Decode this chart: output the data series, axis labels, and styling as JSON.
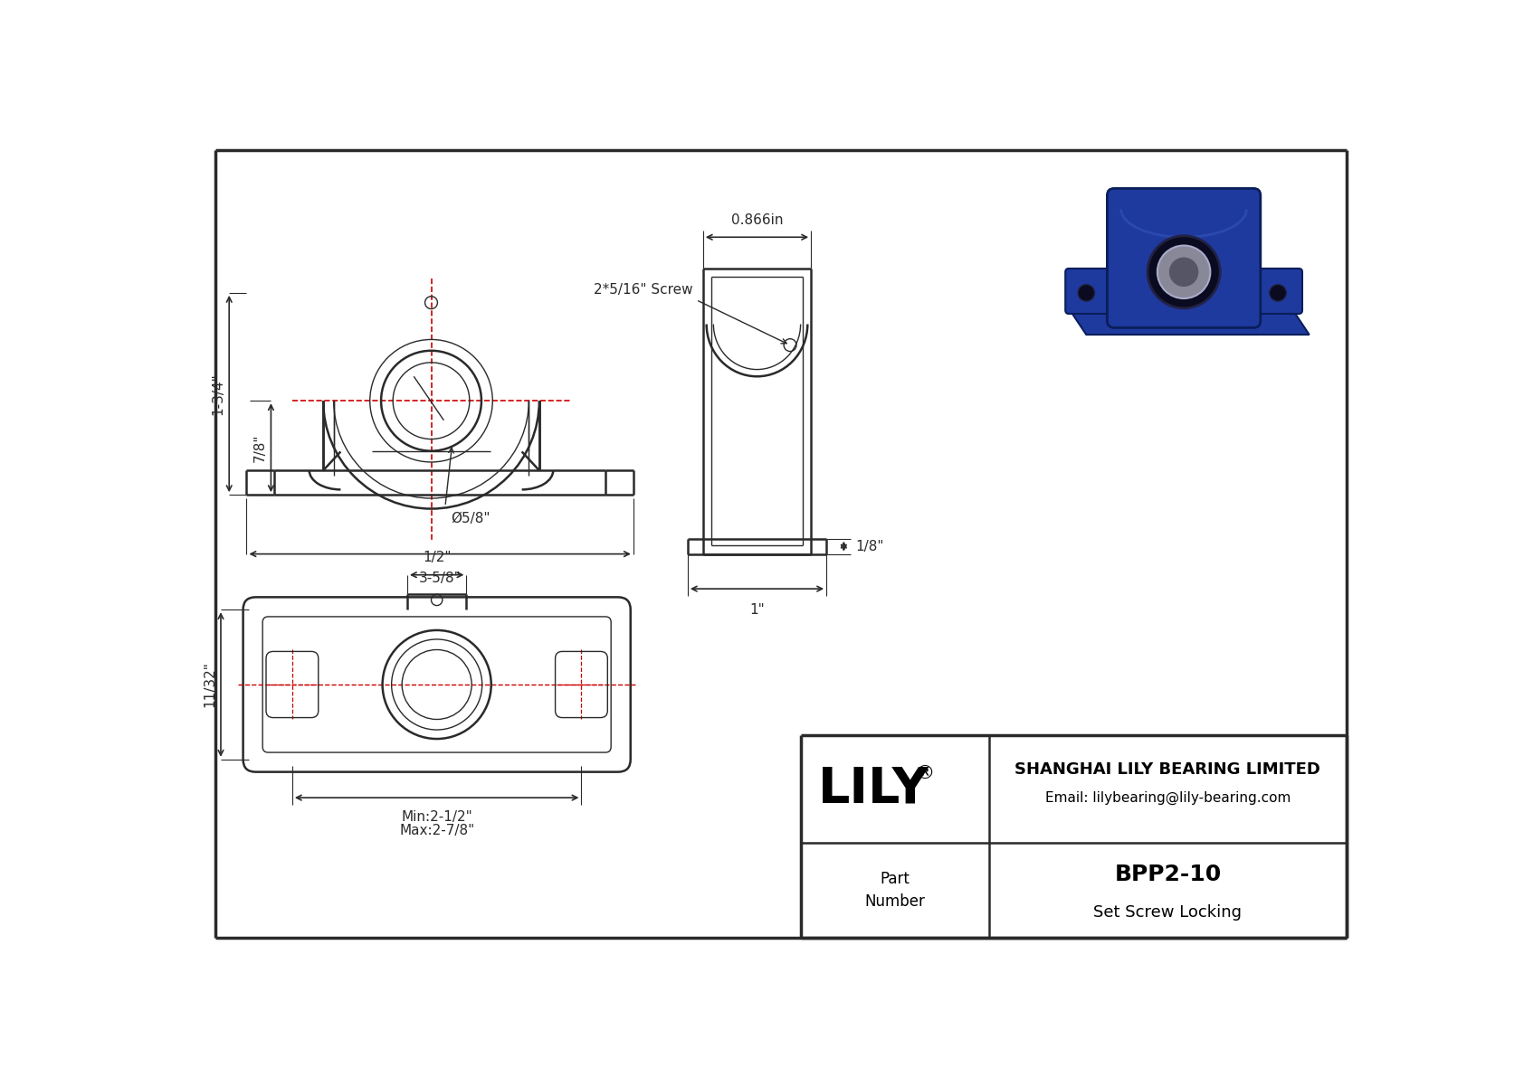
{
  "background_color": "#ffffff",
  "line_color": "#2a2a2a",
  "red_line_color": "#cc0000",
  "dim_color": "#2a2a2a",
  "title_box": {
    "company": "SHANGHAI LILY BEARING LIMITED",
    "email": "Email: lilybearing@lily-bearing.com",
    "part_label": "Part\nNumber",
    "part_number": "BPP2-10",
    "part_type": "Set Screw Locking",
    "lily_text": "LILY"
  },
  "dimensions": {
    "front_height": "1-3/4\"",
    "front_base_height": "7/8\"",
    "front_width": "3-5/8\"",
    "bore_dia": "Ø5/8\"",
    "side_width": "1\"",
    "side_lip": "1/8\"",
    "screw_label": "2*5/16\" Screw",
    "top_width": "0.866in",
    "bottom_min": "Min:2-1/2\"",
    "bottom_max": "Max:2-7/8\"",
    "bottom_left": "11/32\"",
    "bottom_top": "1/2\""
  }
}
